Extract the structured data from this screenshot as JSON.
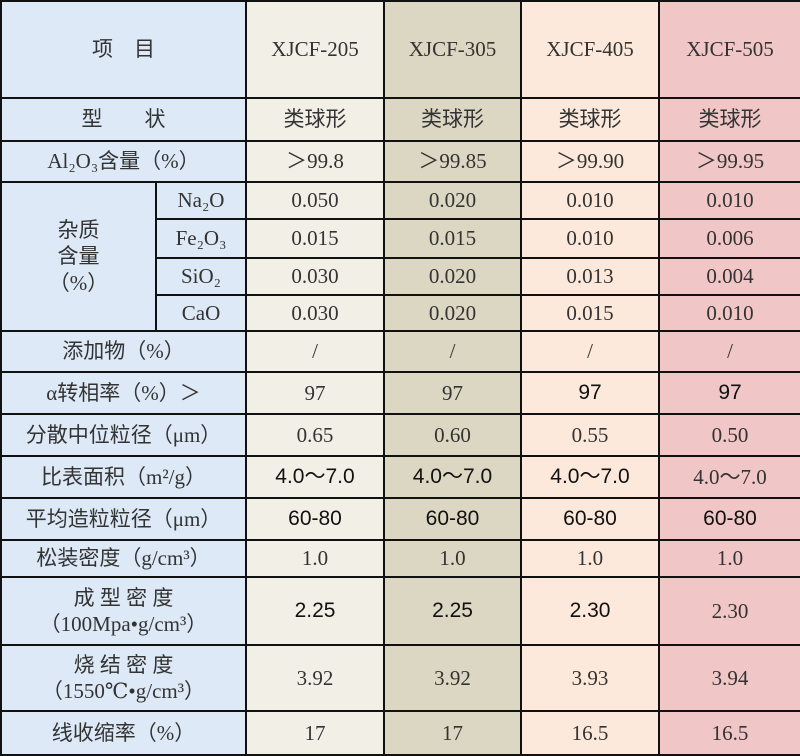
{
  "colors": {
    "label_bg": "#dde9f6",
    "col1": "#f2f0e6",
    "col2": "#dcd7c2",
    "col3": "#fde9db",
    "col4": "#f0c6c6"
  },
  "header": {
    "label": "项　目",
    "products": [
      "XJCF-205",
      "XJCF-305",
      "XJCF-405",
      "XJCF-505"
    ]
  },
  "impurity_group": {
    "label": "杂质\n含量\n（%）"
  },
  "rows": [
    {
      "label": "型　　状",
      "values": [
        "类球形",
        "类球形",
        "类球形",
        "类球形"
      ]
    },
    {
      "label": "Al₂O₃含量（%）",
      "values": [
        "＞99.8",
        "＞99.85",
        "＞99.90",
        "＞99.95"
      ]
    },
    {
      "sub": "Na₂O",
      "values": [
        "0.050",
        "0.020",
        "0.010",
        "0.010"
      ]
    },
    {
      "sub": "Fe₂O₃",
      "values": [
        "0.015",
        "0.015",
        "0.010",
        "0.006"
      ]
    },
    {
      "sub": "SiO₂",
      "values": [
        "0.030",
        "0.020",
        "0.013",
        "0.004"
      ]
    },
    {
      "sub": "CaO",
      "values": [
        "0.030",
        "0.020",
        "0.015",
        "0.010"
      ]
    },
    {
      "label": "添加物（%）",
      "values": [
        "/",
        "/",
        "/",
        "/"
      ]
    },
    {
      "label": "α转相率（%）＞",
      "values": [
        "97",
        "97",
        "97",
        "97"
      ],
      "sans": [
        false,
        false,
        true,
        true
      ]
    },
    {
      "label": "分散中位粒径（μm）",
      "values": [
        "0.65",
        "0.60",
        "0.55",
        "0.50"
      ]
    },
    {
      "label": "比表面积（m²/g）",
      "values": [
        "4.0～7.0",
        "4.0～7.0",
        "4.0～7.0",
        "4.0～7.0"
      ],
      "sans": [
        true,
        true,
        true,
        false
      ]
    },
    {
      "label": "平均造粒粒径（μm）",
      "values": [
        "60-80",
        "60-80",
        "60-80",
        "60-80"
      ],
      "sans": [
        true,
        true,
        true,
        true
      ]
    },
    {
      "label": "松装密度（g/cm³）",
      "values": [
        "1.0",
        "1.0",
        "1.0",
        "1.0"
      ]
    },
    {
      "label": "成 型 密 度\n（100Mpa•g/cm³）",
      "values": [
        "2.25",
        "2.25",
        "2.30",
        "2.30"
      ],
      "sans": [
        true,
        true,
        true,
        false
      ]
    },
    {
      "label": "烧 结 密 度\n（1550℃•g/cm³）",
      "values": [
        "3.92",
        "3.92",
        "3.93",
        "3.94"
      ]
    },
    {
      "label": "线收缩率（%）",
      "values": [
        "17",
        "17",
        "16.5",
        "16.5"
      ]
    }
  ]
}
